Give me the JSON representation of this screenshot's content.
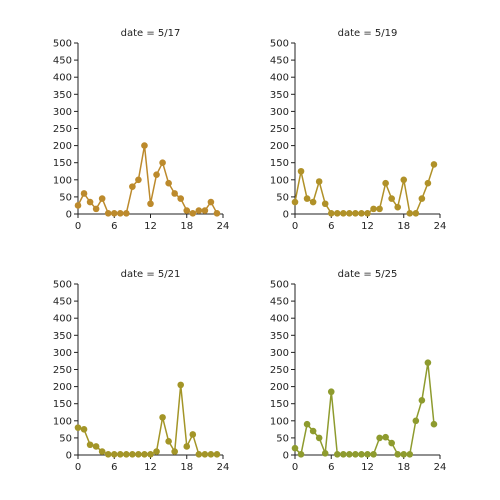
{
  "chart_data": [
    {
      "type": "line",
      "title": "date = 5/17",
      "color": "#bc8a2c",
      "x": [
        0,
        1,
        2,
        3,
        4,
        5,
        6,
        7,
        8,
        9,
        10,
        11,
        12,
        13,
        14,
        15,
        16,
        17,
        18,
        19,
        20,
        21,
        22,
        23
      ],
      "y": [
        25,
        60,
        35,
        15,
        45,
        2,
        2,
        2,
        2,
        80,
        100,
        200,
        30,
        115,
        150,
        90,
        60,
        45,
        10,
        2,
        10,
        10,
        35,
        2
      ],
      "xlim": [
        0,
        24
      ],
      "ylim": [
        0,
        500
      ],
      "xticks": [
        0,
        6,
        12,
        18,
        24
      ],
      "yticks": [
        0,
        50,
        100,
        150,
        200,
        250,
        300,
        350,
        400,
        450,
        500
      ],
      "xlabel": "",
      "ylabel": "",
      "grid": false
    },
    {
      "type": "line",
      "title": "date = 5/19",
      "color": "#b09128",
      "x": [
        0,
        1,
        2,
        3,
        4,
        5,
        6,
        7,
        8,
        9,
        10,
        11,
        12,
        13,
        14,
        15,
        16,
        17,
        18,
        19,
        20,
        21,
        22,
        23
      ],
      "y": [
        35,
        125,
        45,
        35,
        95,
        30,
        2,
        2,
        2,
        2,
        2,
        2,
        2,
        15,
        15,
        90,
        45,
        20,
        100,
        2,
        2,
        45,
        90,
        145
      ],
      "xlim": [
        0,
        24
      ],
      "ylim": [
        0,
        500
      ],
      "xticks": [
        0,
        6,
        12,
        18,
        24
      ],
      "yticks": [
        0,
        50,
        100,
        150,
        200,
        250,
        300,
        350,
        400,
        450,
        500
      ],
      "xlabel": "",
      "ylabel": "",
      "grid": false
    },
    {
      "type": "line",
      "title": "date = 5/21",
      "color": "#a39527",
      "x": [
        0,
        1,
        2,
        3,
        4,
        5,
        6,
        7,
        8,
        9,
        10,
        11,
        12,
        13,
        14,
        15,
        16,
        17,
        18,
        19,
        20,
        21,
        22,
        23
      ],
      "y": [
        80,
        75,
        30,
        25,
        10,
        2,
        2,
        2,
        2,
        2,
        2,
        2,
        2,
        10,
        110,
        40,
        10,
        205,
        25,
        60,
        2,
        2,
        2,
        2
      ],
      "xlim": [
        0,
        24
      ],
      "ylim": [
        0,
        500
      ],
      "xticks": [
        0,
        6,
        12,
        18,
        24
      ],
      "yticks": [
        0,
        50,
        100,
        150,
        200,
        250,
        300,
        350,
        400,
        450,
        500
      ],
      "xlabel": "",
      "ylabel": "",
      "grid": false
    },
    {
      "type": "line",
      "title": "date = 5/25",
      "color": "#8e9b2e",
      "x": [
        0,
        1,
        2,
        3,
        4,
        5,
        6,
        7,
        8,
        9,
        10,
        11,
        12,
        13,
        14,
        15,
        16,
        17,
        18,
        19,
        20,
        21,
        22,
        23
      ],
      "y": [
        20,
        2,
        90,
        70,
        50,
        5,
        185,
        2,
        2,
        2,
        2,
        2,
        2,
        2,
        50,
        52,
        35,
        2,
        2,
        2,
        100,
        160,
        270,
        90
      ],
      "xlim": [
        0,
        24
      ],
      "ylim": [
        0,
        500
      ],
      "xticks": [
        0,
        6,
        12,
        18,
        24
      ],
      "yticks": [
        0,
        50,
        100,
        150,
        200,
        250,
        300,
        350,
        400,
        450,
        500
      ],
      "xlabel": "",
      "ylabel": "",
      "grid": false
    }
  ]
}
